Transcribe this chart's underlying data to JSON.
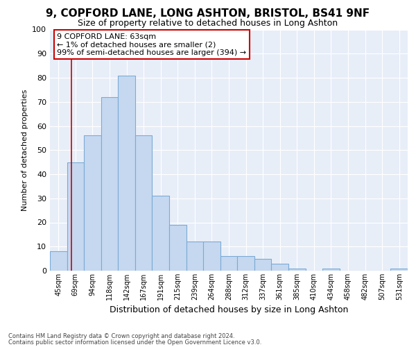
{
  "title": "9, COPFORD LANE, LONG ASHTON, BRISTOL, BS41 9NF",
  "subtitle": "Size of property relative to detached houses in Long Ashton",
  "xlabel": "Distribution of detached houses by size in Long Ashton",
  "ylabel": "Number of detached properties",
  "bar_labels": [
    "45sqm",
    "69sqm",
    "94sqm",
    "118sqm",
    "142sqm",
    "167sqm",
    "191sqm",
    "215sqm",
    "239sqm",
    "264sqm",
    "288sqm",
    "312sqm",
    "337sqm",
    "361sqm",
    "385sqm",
    "410sqm",
    "434sqm",
    "458sqm",
    "482sqm",
    "507sqm",
    "531sqm"
  ],
  "bar_values": [
    8,
    45,
    56,
    72,
    81,
    56,
    31,
    19,
    12,
    12,
    6,
    6,
    5,
    3,
    1,
    0,
    1,
    0,
    0,
    0,
    1
  ],
  "bar_color": "#c5d8f0",
  "bar_edge_color": "#7baad4",
  "bg_color": "#e8eef8",
  "grid_color": "#ffffff",
  "annotation_text": "9 COPFORD LANE: 63sqm\n← 1% of detached houses are smaller (2)\n99% of semi-detached houses are larger (394) →",
  "annotation_box_color": "#ffffff",
  "annotation_box_edge": "#cc0000",
  "ylim": [
    0,
    100
  ],
  "footer1": "Contains HM Land Registry data © Crown copyright and database right 2024.",
  "footer2": "Contains public sector information licensed under the Open Government Licence v3.0.",
  "title_fontsize": 11,
  "subtitle_fontsize": 9,
  "ylabel_fontsize": 8,
  "xlabel_fontsize": 9,
  "tick_fontsize": 8,
  "xtick_fontsize": 7,
  "footer_fontsize": 6,
  "annotation_fontsize": 8
}
